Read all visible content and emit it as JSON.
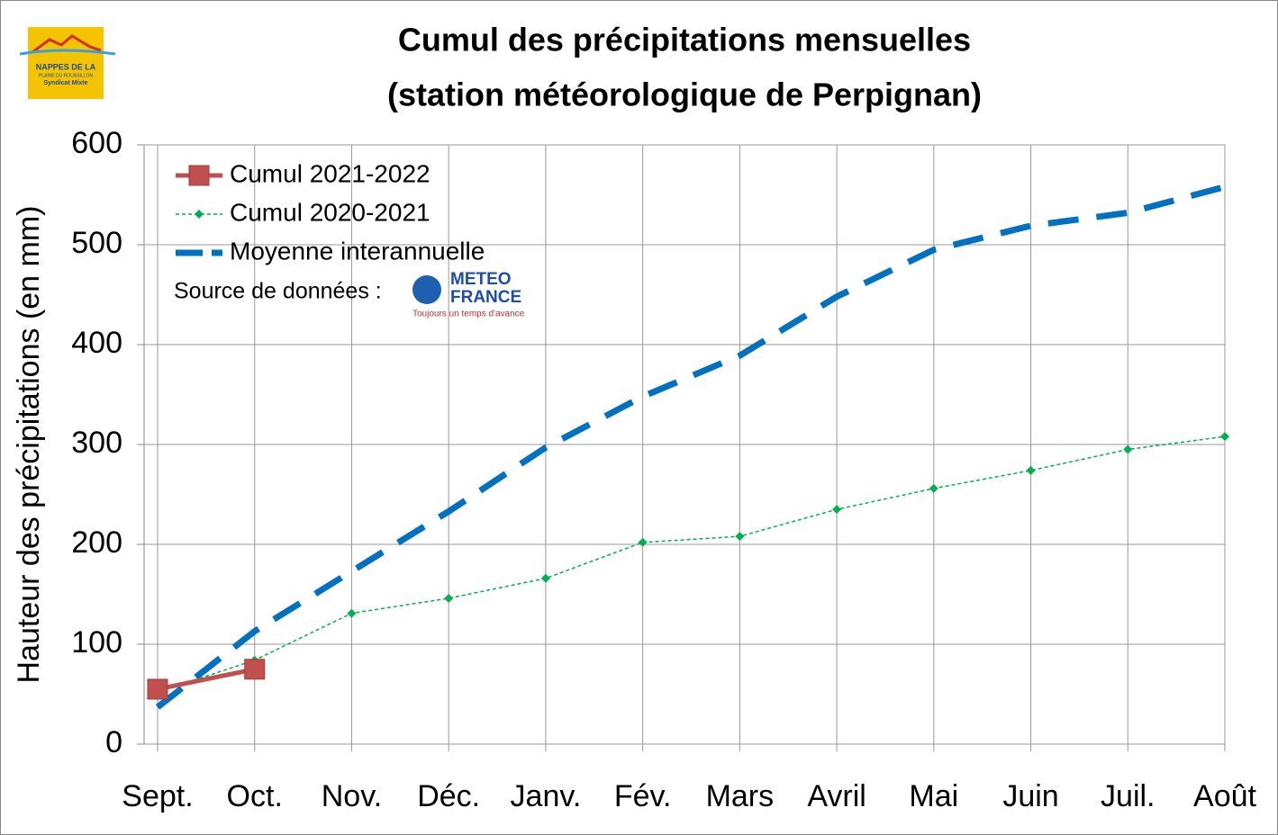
{
  "chart_data": {
    "type": "line",
    "title": [
      "Cumul des précipitations mensuelles",
      "(station météorologique de Perpignan)"
    ],
    "y_label": "Hauteur des précipitations (en mm)",
    "categories": [
      "Sept.",
      "Oct.",
      "Nov.",
      "Déc.",
      "Janv.",
      "Fév.",
      "Mars",
      "Avril",
      "Mai",
      "Juin",
      "Juil.",
      "Août"
    ],
    "series": [
      {
        "name": "Cumul 2021-2022",
        "color": "#c0504d",
        "values": [
          55,
          75,
          null,
          null,
          null,
          null,
          null,
          null,
          null,
          null,
          null,
          null
        ]
      },
      {
        "name": "Cumul 2020-2021",
        "color": "#00b050",
        "values": [
          52,
          84,
          131,
          146,
          166,
          202,
          208,
          235,
          256,
          274,
          295,
          308
        ]
      },
      {
        "name": "Moyenne interannuelle",
        "color": "#0070c0",
        "values": [
          37,
          113,
          173,
          233,
          297,
          348,
          389,
          448,
          495,
          519,
          532,
          558
        ]
      }
    ],
    "ylim": [
      0,
      600
    ],
    "yticks": [
      0,
      100,
      200,
      300,
      400,
      500,
      600
    ],
    "grid": true,
    "legend": "upper left",
    "source_label": "Source de données :",
    "source_logo": {
      "line1": "METEO",
      "line2": "FRANCE",
      "slogan": "Toujours un temps d'avance"
    },
    "org_logo": {
      "line1": "NAPPES DE LA",
      "line2": "PLAINE DU ROUSSILLON",
      "line3": "Syndicat Mixte"
    }
  }
}
